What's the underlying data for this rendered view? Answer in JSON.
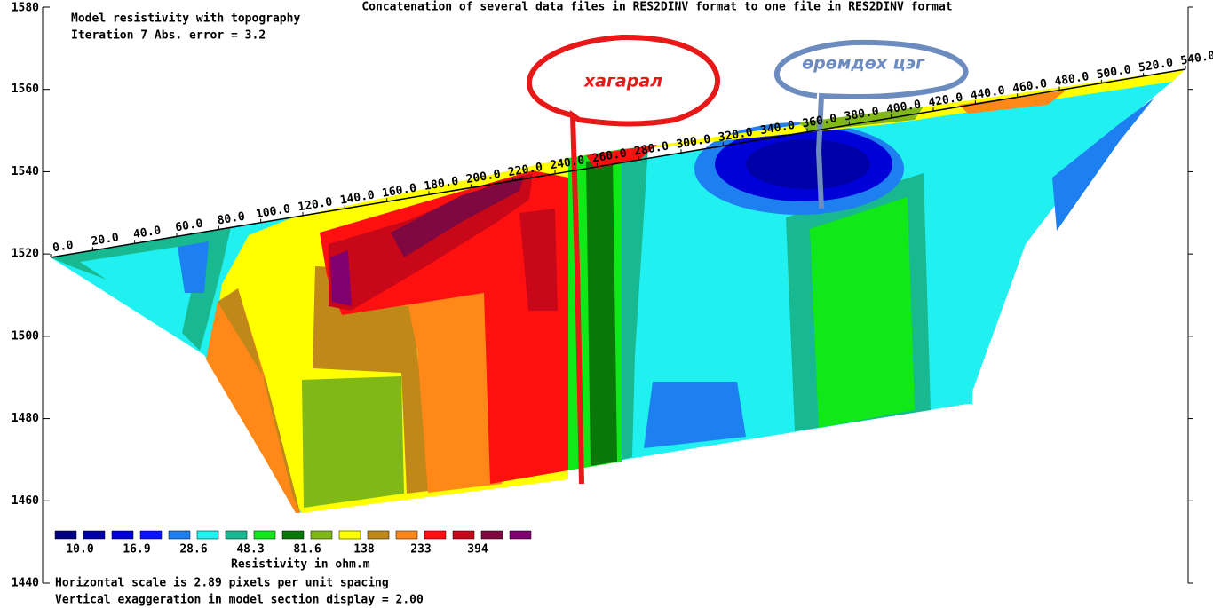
{
  "chart_data": {
    "type": "resistivity-section",
    "title": "Concatenation of several data files in RES2DINV format to one file in RES2DINV format",
    "subtitle": [
      "Model resistivity with topography",
      "Iteration 7 Abs. error = 3.2"
    ],
    "ylim": [
      1440,
      1580
    ],
    "yticks": [
      1440,
      1460,
      1480,
      1500,
      1520,
      1540,
      1560,
      1580
    ],
    "xlim": [
      0,
      540
    ],
    "xticks": [
      {
        "value": 0,
        "label": "0.0"
      },
      {
        "value": 20,
        "label": "20.0"
      },
      {
        "value": 40,
        "label": "40.0"
      },
      {
        "value": 60,
        "label": "60.0"
      },
      {
        "value": 80,
        "label": "80.0"
      },
      {
        "value": 100,
        "label": "100.0"
      },
      {
        "value": 120,
        "label": "120.0"
      },
      {
        "value": 140,
        "label": "140.0"
      },
      {
        "value": 160,
        "label": "160.0"
      },
      {
        "value": 180,
        "label": "180.0"
      },
      {
        "value": 200,
        "label": "200.0"
      },
      {
        "value": 220,
        "label": "220.0"
      },
      {
        "value": 240,
        "label": "240.0"
      },
      {
        "value": 260,
        "label": "260.0"
      },
      {
        "value": 280,
        "label": "280.0"
      },
      {
        "value": 300,
        "label": "300.0"
      },
      {
        "value": 320,
        "label": "320.0"
      },
      {
        "value": 340,
        "label": "340.0"
      },
      {
        "value": 360,
        "label": "360.0"
      },
      {
        "value": 380,
        "label": "380.0"
      },
      {
        "value": 400,
        "label": "400.0"
      },
      {
        "value": 420,
        "label": "420.0"
      },
      {
        "value": 440,
        "label": "440.0"
      },
      {
        "value": 460,
        "label": "460.0"
      },
      {
        "value": 480,
        "label": "480.0"
      },
      {
        "value": 500,
        "label": "500.0"
      },
      {
        "value": 520,
        "label": "520.0"
      },
      {
        "value": 540,
        "label": "540.0"
      }
    ],
    "color_scale": {
      "title": "Resistivity in ohm.m",
      "colors": [
        "#000080",
        "#0000a8",
        "#0000d8",
        "#0a14ff",
        "#1e80f0",
        "#20f0f0",
        "#18b890",
        "#10e818",
        "#087808",
        "#80b818",
        "#ffff00",
        "#c08818",
        "#ff8818",
        "#ff1010",
        "#c80818",
        "#800840",
        "#800070"
      ],
      "labels": [
        {
          "value": 10.0,
          "label": "10.0"
        },
        16.9,
        28.6,
        48.3,
        81.6,
        138,
        233,
        394
      ]
    },
    "footnotes": [
      "Horizontal scale is 2.89 pixels per unit spacing",
      "Vertical exaggeration in model section display = 2.00"
    ],
    "annotations": [
      "хагарал",
      "өрөмдөх цэг"
    ]
  }
}
